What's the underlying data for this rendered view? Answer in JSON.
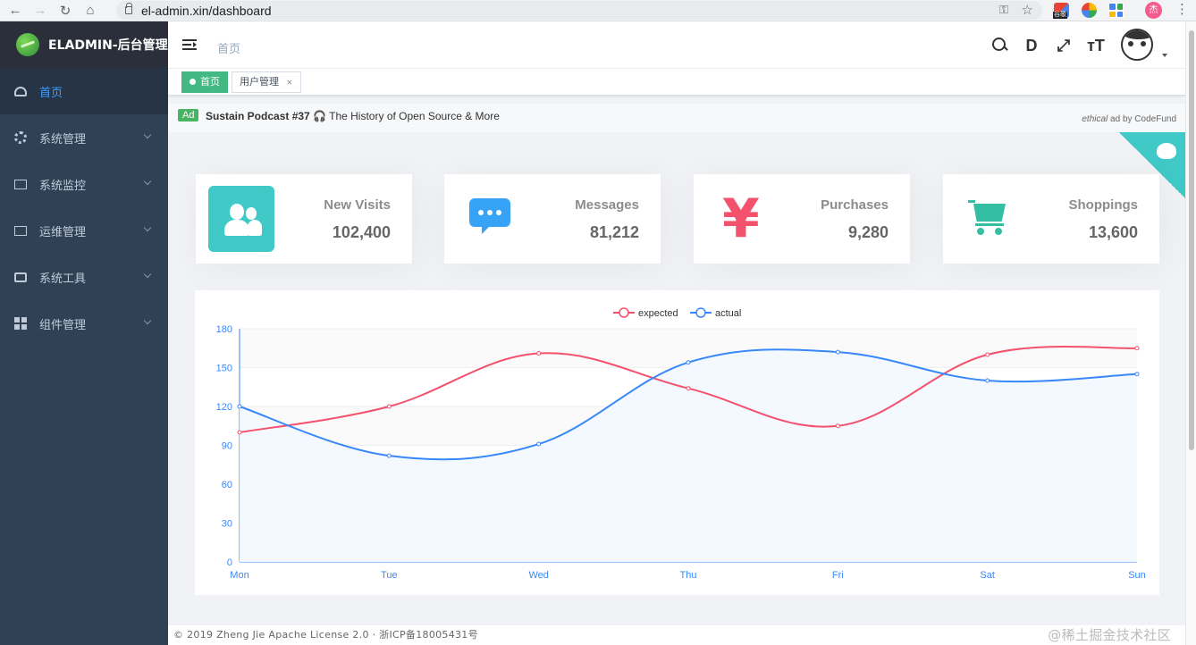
{
  "browser": {
    "url": "el-admin.xin/dashboard",
    "ext_label": "谷歌",
    "profile_initial": "杰"
  },
  "sidebar": {
    "title": "ELADMIN-后台管理",
    "items": [
      {
        "label": "首页",
        "icon": "dashboard-icon",
        "active": true
      },
      {
        "label": "系统管理",
        "icon": "gear-icon"
      },
      {
        "label": "系统监控",
        "icon": "monitor-icon"
      },
      {
        "label": "运维管理",
        "icon": "monitor-icon"
      },
      {
        "label": "系统工具",
        "icon": "toolbox-icon"
      },
      {
        "label": "组件管理",
        "icon": "grid-icon"
      }
    ]
  },
  "header": {
    "breadcrumb": "首页"
  },
  "tags": [
    {
      "label": "首页"
    },
    {
      "label": "用户管理",
      "close": "×"
    }
  ],
  "ad": {
    "badge": "Ad",
    "title": "Sustain Podcast #37",
    "icon": "🎧",
    "text": " The History of Open Source & More",
    "by_italic": "ethical",
    "by_rest": " ad by CodeFund"
  },
  "cards": [
    {
      "label": "New Visits",
      "value": "102,400",
      "color": "#40c9c6",
      "icon": "people-icon"
    },
    {
      "label": "Messages",
      "value": "81,212",
      "color": "#36a3f7",
      "icon": "message-icon"
    },
    {
      "label": "Purchases",
      "value": "9,280",
      "color": "#f4516c",
      "icon": "yen-icon"
    },
    {
      "label": "Shoppings",
      "value": "13,600",
      "color": "#34bfa3",
      "icon": "cart-icon"
    }
  ],
  "chart_data": {
    "type": "line",
    "categories": [
      "Mon",
      "Tue",
      "Wed",
      "Thu",
      "Fri",
      "Sat",
      "Sun"
    ],
    "series": [
      {
        "name": "expected",
        "values": [
          100,
          120,
          161,
          134,
          105,
          160,
          165
        ],
        "color": "#f4516c"
      },
      {
        "name": "actual",
        "values": [
          120,
          82,
          91,
          154,
          162,
          140,
          145
        ],
        "color": "#3888fa"
      }
    ],
    "yticks": [
      0,
      30,
      60,
      90,
      120,
      150,
      180
    ],
    "ylim": [
      0,
      180
    ],
    "legend": "top-center",
    "grid": true
  },
  "footer": {
    "text": "© 2019 Zheng Jie Apache License 2.0 · 浙ICP备18005431号",
    "watermark": "@稀土掘金技术社区"
  }
}
